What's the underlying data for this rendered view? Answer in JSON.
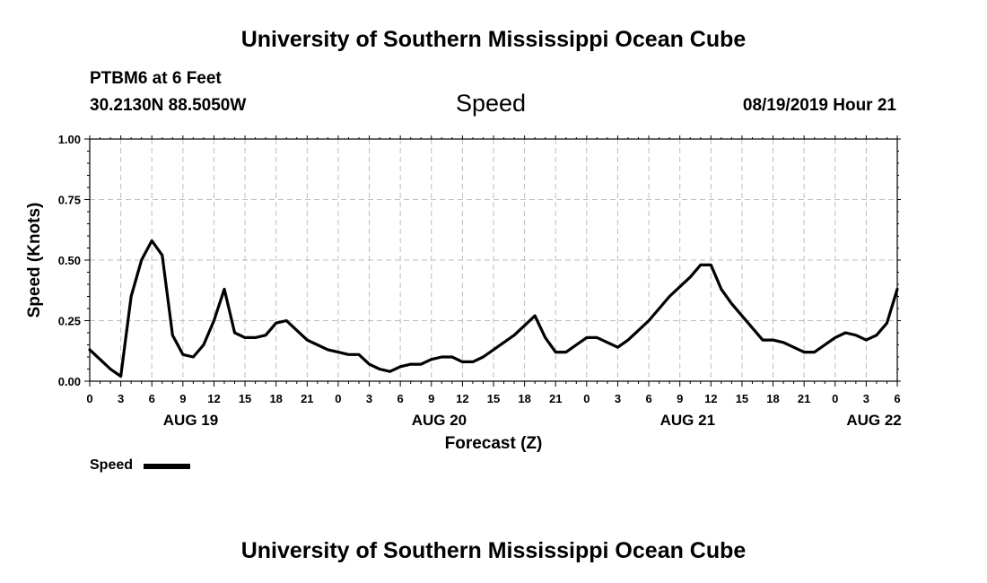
{
  "header": {
    "title_top": "University of Southern Mississippi Ocean Cube",
    "station": "PTBM6 at 6 Feet",
    "coords": "30.2130N 88.5050W",
    "variable": "Speed",
    "datetime": "08/19/2019 Hour 21"
  },
  "footer": {
    "title_bottom": "University of Southern Mississippi Ocean Cube"
  },
  "legend": {
    "label": "Speed",
    "color": "#000000"
  },
  "chart_data": {
    "type": "line",
    "title": "Speed",
    "xlabel": "Forecast (Z)",
    "ylabel": "Speed (Knots)",
    "xlim": [
      0,
      78
    ],
    "ylim": [
      0,
      1
    ],
    "grid": true,
    "y_ticks": [
      "0.00",
      "0.25",
      "0.50",
      "0.75",
      "1.00"
    ],
    "y_tick_values": [
      0,
      0.25,
      0.5,
      0.75,
      1.0
    ],
    "x_tick_labels": [
      "0",
      "3",
      "6",
      "9",
      "12",
      "15",
      "18",
      "21",
      "0",
      "3",
      "6",
      "9",
      "12",
      "15",
      "18",
      "21",
      "0",
      "3",
      "6",
      "9",
      "12",
      "15",
      "18",
      "21",
      "0",
      "3",
      "6"
    ],
    "date_labels": [
      {
        "label": "AUG 19",
        "hour": 9.75
      },
      {
        "label": "AUG 20",
        "hour": 33.75
      },
      {
        "label": "AUG 21",
        "hour": 57.75
      },
      {
        "label": "AUG 22",
        "hour": 75.75
      }
    ],
    "series": [
      {
        "name": "Speed",
        "x": [
          0,
          1,
          2,
          3,
          4,
          5,
          6,
          7,
          8,
          9,
          10,
          11,
          12,
          13,
          14,
          15,
          16,
          17,
          18,
          19,
          20,
          21,
          22,
          23,
          24,
          25,
          26,
          27,
          28,
          29,
          30,
          31,
          32,
          33,
          34,
          35,
          36,
          37,
          38,
          39,
          40,
          41,
          42,
          43,
          44,
          45,
          46,
          47,
          48,
          49,
          50,
          51,
          52,
          53,
          54,
          55,
          56,
          57,
          58,
          59,
          60,
          61,
          62,
          63,
          64,
          65,
          66,
          67,
          68,
          69,
          70,
          71,
          72,
          73,
          74,
          75,
          76,
          77,
          78
        ],
        "values": [
          0.13,
          0.09,
          0.05,
          0.02,
          0.35,
          0.5,
          0.58,
          0.52,
          0.19,
          0.11,
          0.1,
          0.15,
          0.25,
          0.38,
          0.2,
          0.18,
          0.18,
          0.19,
          0.24,
          0.25,
          0.21,
          0.17,
          0.15,
          0.13,
          0.12,
          0.11,
          0.11,
          0.07,
          0.05,
          0.04,
          0.06,
          0.07,
          0.07,
          0.09,
          0.1,
          0.1,
          0.08,
          0.08,
          0.1,
          0.13,
          0.16,
          0.19,
          0.23,
          0.27,
          0.18,
          0.12,
          0.12,
          0.15,
          0.18,
          0.18,
          0.16,
          0.14,
          0.17,
          0.21,
          0.25,
          0.3,
          0.35,
          0.39,
          0.43,
          0.48,
          0.48,
          0.38,
          0.32,
          0.27,
          0.22,
          0.17,
          0.17,
          0.16,
          0.14,
          0.12,
          0.12,
          0.15,
          0.18,
          0.2,
          0.19,
          0.17,
          0.19,
          0.24,
          0.38
        ]
      }
    ]
  }
}
